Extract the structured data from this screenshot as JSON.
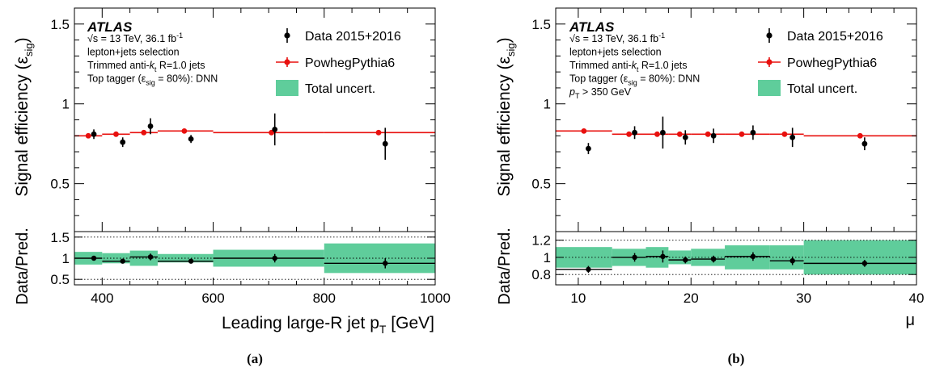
{
  "colors": {
    "mc": "#e8100e",
    "band": "#5fcd9b",
    "data": "#000000"
  },
  "chart_data": [
    {
      "type": "scatter",
      "caption": "(a)",
      "atlas_label": "ATLAS",
      "info_lines": [
        {
          "pre": "√s = 13 TeV, 36.1 fb",
          "sup": "-1"
        },
        {
          "pre": "lepton+jets selection"
        },
        {
          "pre": "Trimmed anti-",
          "it": "k",
          "sub": "t",
          "post": " R=1.0 jets"
        },
        {
          "pre": "Top tagger (ε",
          "sub": "sig",
          "post": " = 80%): DNN"
        }
      ],
      "legend": {
        "data": "Data 2015+2016",
        "mc": "PowhegPythia6",
        "band": "Total uncert."
      },
      "ylabel_top": "Signal efficiency (ε",
      "ylabel_top_sub": "sig",
      "ylabel_top_close": ")",
      "ylabel_bottom": "Data/Pred.",
      "xlabel": "Leading large-R jet p",
      "xlabel_sub": "T",
      "xlabel_unit": " [GeV]",
      "xlim": [
        350,
        1000
      ],
      "xticks": [
        400,
        600,
        800,
        1000
      ],
      "ylim_top": [
        0.2,
        1.6
      ],
      "yticks_top": [
        0.5,
        1,
        1.5
      ],
      "ylim_ratio": [
        0.37,
        1.63
      ],
      "yticks_ratio": [
        0.5,
        1,
        1.5
      ],
      "ratio_dotted": [
        0.5,
        1,
        1.5
      ],
      "bins": [
        [
          350,
          400
        ],
        [
          400,
          450
        ],
        [
          450,
          500
        ],
        [
          500,
          600
        ],
        [
          600,
          800
        ],
        [
          800,
          1000
        ]
      ],
      "mc_values": [
        0.8,
        0.81,
        0.82,
        0.83,
        0.82,
        0.82
      ],
      "mc_x": [
        375,
        425,
        475,
        548,
        705,
        898
      ],
      "data_x": [
        385,
        437,
        487,
        560,
        711,
        910
      ],
      "data_values": [
        0.81,
        0.76,
        0.86,
        0.78,
        0.84,
        0.75
      ],
      "data_errors": [
        0.03,
        0.03,
        0.05,
        0.025,
        0.1,
        0.1
      ],
      "ratio_values": [
        1.0,
        0.93,
        1.03,
        0.93,
        1.0,
        0.88
      ],
      "ratio_errors": [
        0.05,
        0.04,
        0.08,
        0.04,
        0.1,
        0.12
      ],
      "band_errors": [
        0.15,
        0.12,
        0.18,
        0.1,
        0.2,
        0.35
      ]
    },
    {
      "type": "scatter",
      "caption": "(b)",
      "atlas_label": "ATLAS",
      "info_lines": [
        {
          "pre": "√s = 13 TeV, 36.1 fb",
          "sup": "-1"
        },
        {
          "pre": "lepton+jets selection"
        },
        {
          "pre": "Trimmed anti-",
          "it": "k",
          "sub": "t",
          "post": " R=1.0 jets"
        },
        {
          "pre": "Top tagger (ε",
          "sub": "sig",
          "post": " = 80%): DNN"
        },
        {
          "pre": "",
          "it": "p",
          "sub": "T",
          "post": " > 350 GeV"
        }
      ],
      "legend": {
        "data": "Data 2015+2016",
        "mc": "PowhegPythia6",
        "band": "Total uncert."
      },
      "ylabel_top": "Signal efficiency (ε",
      "ylabel_top_sub": "sig",
      "ylabel_top_close": ")",
      "ylabel_bottom": "Data/Pred.",
      "xlabel": "μ",
      "xlabel_sub": "",
      "xlabel_unit": "",
      "xlim": [
        8,
        40
      ],
      "xticks": [
        10,
        20,
        30,
        40
      ],
      "ylim_top": [
        0.2,
        1.6
      ],
      "yticks_top": [
        0.5,
        1,
        1.5
      ],
      "ylim_ratio": [
        0.68,
        1.3
      ],
      "yticks_ratio": [
        0.8,
        1,
        1.2
      ],
      "ratio_dotted": [
        0.8,
        1,
        1.2
      ],
      "bins": [
        [
          8,
          13
        ],
        [
          13,
          16
        ],
        [
          16,
          18
        ],
        [
          18,
          20
        ],
        [
          20,
          23
        ],
        [
          23,
          27
        ],
        [
          27,
          30
        ],
        [
          30,
          40
        ]
      ],
      "mc_values": [
        0.83,
        0.81,
        0.81,
        0.81,
        0.81,
        0.81,
        0.81,
        0.8
      ],
      "mc_x": [
        10.5,
        14.5,
        17,
        19,
        21.5,
        24.5,
        28.3,
        35
      ],
      "data_x": [
        10.9,
        15.0,
        17.5,
        19.5,
        22.0,
        25.5,
        29.0,
        35.4
      ],
      "data_values": [
        0.72,
        0.82,
        0.82,
        0.79,
        0.8,
        0.82,
        0.79,
        0.75
      ],
      "data_errors": [
        0.035,
        0.04,
        0.1,
        0.045,
        0.045,
        0.045,
        0.06,
        0.04
      ],
      "ratio_values": [
        0.86,
        1.0,
        1.01,
        0.97,
        0.98,
        1.01,
        0.96,
        0.93
      ],
      "ratio_errors": [
        0.04,
        0.05,
        0.07,
        0.04,
        0.04,
        0.05,
        0.05,
        0.04
      ],
      "band_errors": [
        0.12,
        0.1,
        0.12,
        0.08,
        0.1,
        0.14,
        0.14,
        0.2
      ]
    }
  ]
}
